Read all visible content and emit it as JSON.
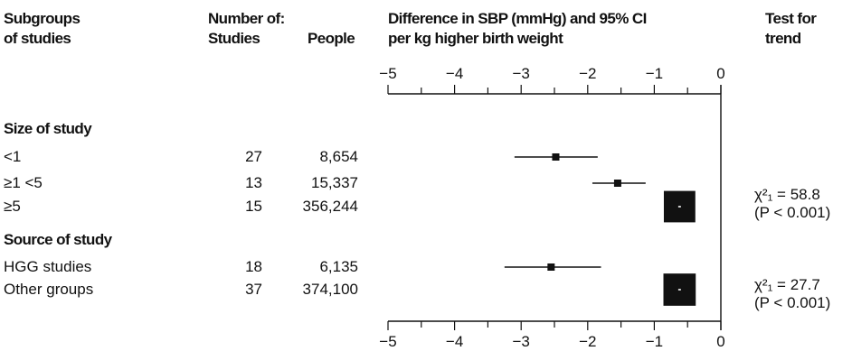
{
  "headers": {
    "subgroups_line1": "Subgroups",
    "subgroups_line2": "of studies",
    "number_of": "Number of:",
    "studies": "Studies",
    "people": "People",
    "diff_line1": "Difference in SBP (mmHg) and 95% CI",
    "diff_line2": "per kg higher birth weight",
    "trend_line1": "Test for",
    "trend_line2": "trend"
  },
  "sections": [
    {
      "title": "Size of study",
      "rows": [
        {
          "label": "<1",
          "studies": "27",
          "people": "8,654"
        },
        {
          "label": "≥1 <5",
          "studies": "13",
          "people": "15,337"
        },
        {
          "label": "≥5",
          "studies": "15",
          "people": "356,244"
        }
      ],
      "trend": {
        "stat": "χ²₁ = 58.8",
        "p": "(P < 0.001)"
      }
    },
    {
      "title": "Source of study",
      "rows": [
        {
          "label": "HGG studies",
          "studies": "18",
          "people": "6,135"
        },
        {
          "label": "Other groups",
          "studies": "37",
          "people": "374,100"
        }
      ],
      "trend": {
        "stat": "χ²₁ = 27.7",
        "p": "(P < 0.001)"
      }
    }
  ],
  "chart_data": {
    "type": "forest",
    "xlim": [
      -5,
      0
    ],
    "ticks": [
      -5,
      -4,
      -3,
      -2,
      -1,
      0
    ],
    "tick_labels": [
      "−5",
      "−4",
      "−3",
      "−2",
      "−1",
      "0"
    ],
    "reference_line": 0,
    "points": [
      {
        "label": "<1",
        "estimate": -2.48,
        "ci": [
          -3.1,
          -1.85
        ],
        "weight": 0.023
      },
      {
        "label": "≥1 <5",
        "estimate": -1.55,
        "ci": [
          -1.93,
          -1.13
        ],
        "weight": 0.04
      },
      {
        "label": "≥5",
        "estimate": -0.62,
        "ci": [
          -0.64,
          -0.6
        ],
        "weight": 0.935
      },
      {
        "label": "HGG studies",
        "estimate": -2.55,
        "ci": [
          -3.25,
          -1.8
        ],
        "weight": 0.016
      },
      {
        "label": "Other groups",
        "estimate": -0.62,
        "ci": [
          -0.64,
          -0.6
        ],
        "weight": 0.984
      }
    ]
  }
}
